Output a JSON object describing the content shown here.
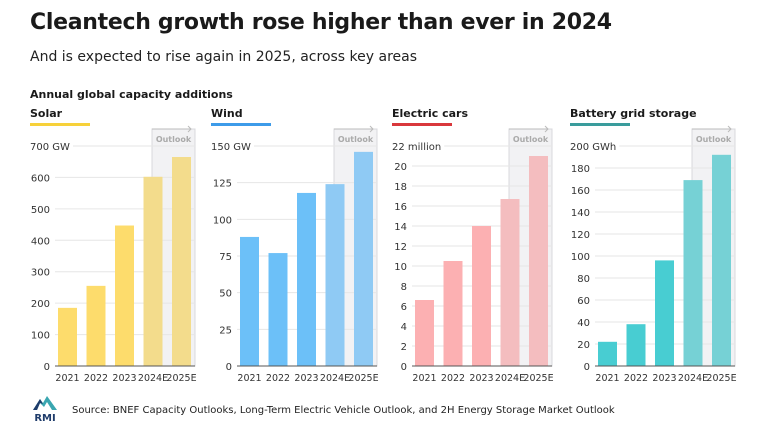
{
  "title": "Cleantech growth rose higher than ever in 2024",
  "subtitle": "And is expected to rise again in 2025, across key areas",
  "section_label": "Annual global capacity additions",
  "outlook_label": "Outlook",
  "source": "Source: BNEF Capacity Outlooks, Long-Term Electric Vehicle Outlook, and 2H Energy Storage Market Outlook",
  "logo_text": "RMI",
  "chart_data": [
    {
      "type": "bar",
      "title": "Solar",
      "unit": "GW",
      "categories": [
        "2021",
        "2022",
        "2023",
        "2024E",
        "2025E"
      ],
      "values": [
        185,
        255,
        447,
        602,
        665
      ],
      "ylim": [
        0,
        700
      ],
      "yticks": [
        0,
        100,
        200,
        300,
        400,
        500,
        600,
        700
      ],
      "color": "#fddc6c",
      "outlook_color": "#f3dc8c",
      "accent": "#f7d13a",
      "grid": true,
      "outlook_categories": [
        "2024E",
        "2025E"
      ]
    },
    {
      "type": "bar",
      "title": "Wind",
      "unit": "GW",
      "categories": [
        "2021",
        "2022",
        "2023",
        "2024E",
        "2025E"
      ],
      "values": [
        88,
        77,
        118,
        124,
        146
      ],
      "ylim": [
        0,
        150
      ],
      "yticks": [
        0,
        25,
        50,
        75,
        100,
        125,
        150
      ],
      "color": "#6cc0f8",
      "outlook_color": "#8fcaf4",
      "accent": "#3d9be9",
      "grid": true,
      "outlook_categories": [
        "2024E",
        "2025E"
      ]
    },
    {
      "type": "bar",
      "title": "Electric cars",
      "unit": "million",
      "categories": [
        "2021",
        "2022",
        "2023",
        "2024E",
        "2025E"
      ],
      "values": [
        6.6,
        10.5,
        14,
        16.7,
        21
      ],
      "ylim": [
        0,
        22
      ],
      "yticks": [
        0,
        2,
        4,
        6,
        8,
        10,
        12,
        14,
        16,
        18,
        20,
        22
      ],
      "color": "#fcb0b2",
      "outlook_color": "#f4bdbf",
      "accent": "#d9383c",
      "grid": true,
      "outlook_categories": [
        "2024E",
        "2025E"
      ]
    },
    {
      "type": "bar",
      "title": "Battery grid storage",
      "unit": "GWh",
      "categories": [
        "2021",
        "2022",
        "2023",
        "2024E",
        "2025E"
      ],
      "values": [
        22,
        38,
        96,
        169,
        192
      ],
      "ylim": [
        0,
        200
      ],
      "yticks": [
        0,
        20,
        40,
        60,
        80,
        100,
        120,
        140,
        160,
        180,
        200
      ],
      "color": "#48cdd2",
      "outlook_color": "#76d1d5",
      "accent": "#3a9c9c",
      "grid": true,
      "outlook_categories": [
        "2024E",
        "2025E"
      ]
    }
  ]
}
